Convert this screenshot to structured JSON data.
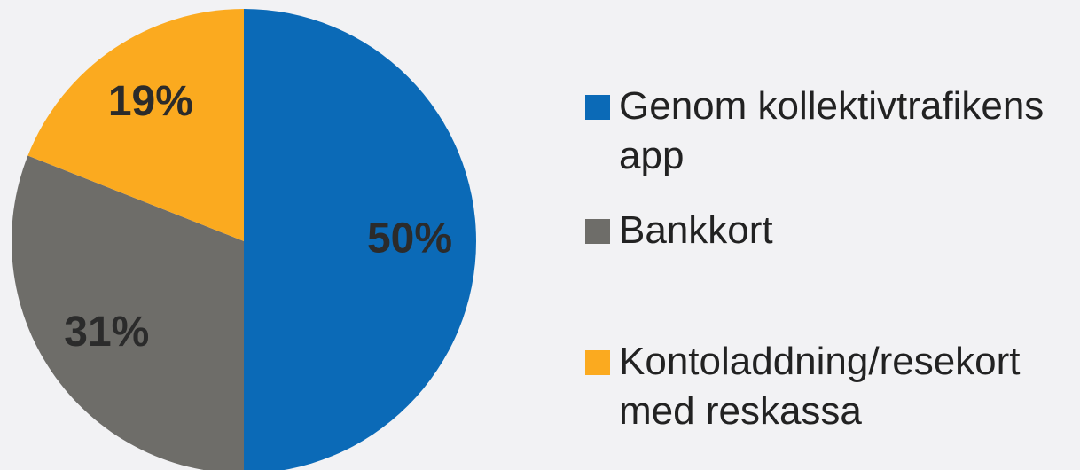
{
  "chart_data": {
    "type": "pie",
    "categories": [
      "Genom kollektivtrafikens app",
      "Bankkort",
      "Kontoladdning/resekort med reskassa"
    ],
    "values": [
      50,
      31,
      19
    ],
    "value_labels": [
      "50%",
      "31%",
      "19%"
    ],
    "colors": [
      "#0b6ab7",
      "#6e6d69",
      "#fbaa1f"
    ]
  }
}
